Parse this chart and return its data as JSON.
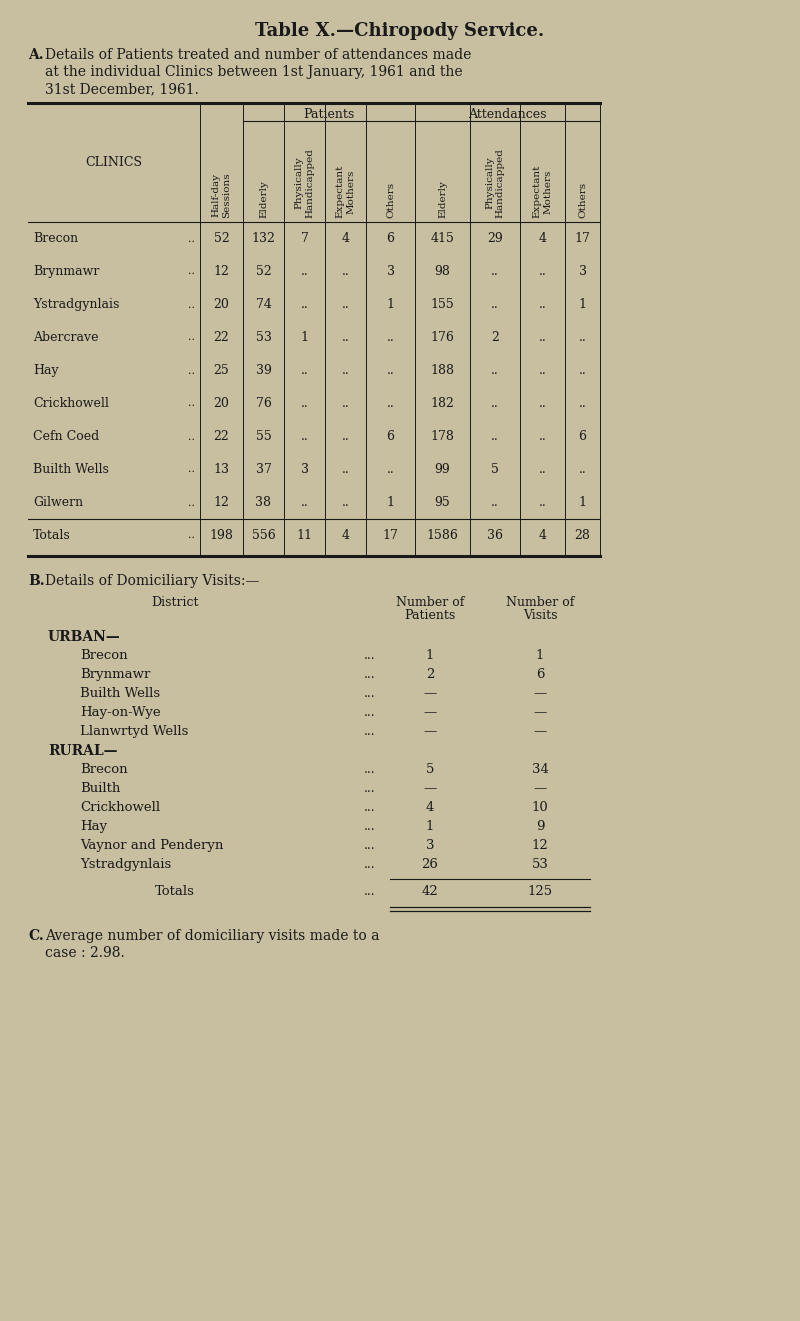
{
  "title": "Table X.—Chiropody Service.",
  "bg_color": "#c8bfa0",
  "text_color": "#1a1a1a",
  "table_A_rows": [
    [
      "Brecon",
      "52",
      "132",
      "7",
      "4",
      "6",
      "415",
      "29",
      "4",
      "17"
    ],
    [
      "Brynmawr",
      "12",
      "52",
      "..",
      "..",
      "3",
      "98",
      "..",
      "..",
      "3"
    ],
    [
      "Ystradgynlais",
      "20",
      "74",
      "..",
      "..",
      "1",
      "155",
      "..",
      "..",
      "1"
    ],
    [
      "Abercrave",
      "22",
      "53",
      "1",
      "..",
      "..",
      "176",
      "2",
      "..",
      ".."
    ],
    [
      "Hay",
      "25",
      "39",
      "..",
      "..",
      "..",
      "188",
      "..",
      "..",
      ".."
    ],
    [
      "Crickhowell",
      "20",
      "76",
      "..",
      "..",
      "..",
      "182",
      "..",
      "..",
      ".."
    ],
    [
      "Cefn Coed",
      "22",
      "55",
      "..",
      "..",
      "6",
      "178",
      "..",
      "..",
      "6"
    ],
    [
      "Builth Wells",
      "13",
      "37",
      "3",
      "..",
      "..",
      "99",
      "5",
      "..",
      ".."
    ],
    [
      "Gilwern",
      "12",
      "38",
      "..",
      "..",
      "1",
      "95",
      "..",
      "..",
      "1"
    ]
  ],
  "table_A_totals": [
    "Totals",
    "198",
    "556",
    "11",
    "4",
    "17",
    "1586",
    "36",
    "4",
    "28"
  ],
  "section_B_urban_rows": [
    [
      "Brecon",
      "1",
      "1"
    ],
    [
      "Brynmawr",
      "2",
      "6"
    ],
    [
      "Builth Wells",
      "—",
      "—"
    ],
    [
      "Hay-on-Wye",
      "—",
      "—"
    ],
    [
      "Llanwrtyd Wells",
      "—",
      "—"
    ]
  ],
  "section_B_rural_rows": [
    [
      "Brecon",
      "5",
      "34"
    ],
    [
      "Builth",
      "—",
      "—"
    ],
    [
      "Crickhowell",
      "4",
      "10"
    ],
    [
      "Hay",
      "1",
      "9"
    ],
    [
      "Vaynor and Penderyn",
      "3",
      "12"
    ],
    [
      "Ystradgynlais",
      "26",
      "53"
    ]
  ],
  "section_B_totals": [
    "42",
    "125"
  ]
}
